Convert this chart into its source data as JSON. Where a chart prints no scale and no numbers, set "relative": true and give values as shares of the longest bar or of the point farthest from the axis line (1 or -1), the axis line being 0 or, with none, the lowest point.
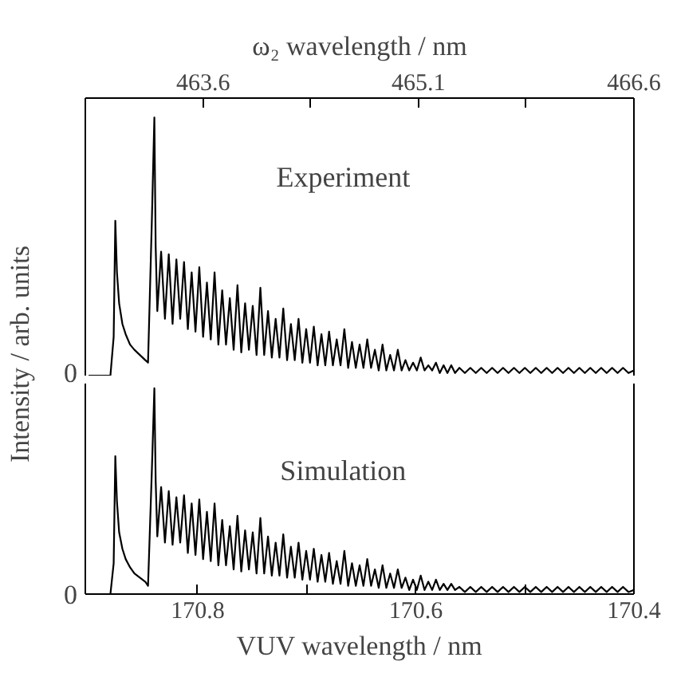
{
  "chart_data": [
    {
      "type": "line",
      "relative": true,
      "ylabel": "Intensity / arb. units",
      "x2label": "ω₂ wavelength / nm",
      "xlim": [
        170.903,
        170.4
      ],
      "x2lim": [
        462.78,
        466.6
      ],
      "x2ticks": [
        463.6,
        {
          "value": 464.35,
          "label": null
        },
        465.1,
        {
          "value": 465.85,
          "label": null
        },
        466.6
      ],
      "annotations": [
        "0"
      ],
      "x": [
        170.9,
        170.89,
        170.88,
        170.877,
        170.8755,
        170.874,
        170.872,
        170.869,
        170.866,
        170.862,
        170.858,
        170.853,
        170.848,
        170.8455,
        170.842,
        170.8397,
        170.8385,
        170.837,
        170.8335,
        170.83,
        170.8265,
        170.823,
        170.8195,
        170.816,
        170.8125,
        170.809,
        170.8055,
        170.802,
        170.7985,
        170.795,
        170.7915,
        170.788,
        170.7845,
        170.781,
        170.7775,
        170.774,
        170.7705,
        170.767,
        170.7635,
        170.76,
        170.7565,
        170.753,
        170.7495,
        170.746,
        170.7425,
        170.739,
        170.7355,
        170.732,
        170.7285,
        170.725,
        170.7215,
        170.718,
        170.7145,
        170.711,
        170.7075,
        170.704,
        170.7005,
        170.697,
        170.6935,
        170.69,
        170.6865,
        170.683,
        170.6795,
        170.676,
        170.6725,
        170.669,
        170.6655,
        170.662,
        170.6585,
        170.655,
        170.6515,
        170.648,
        170.6445,
        170.641,
        170.6375,
        170.634,
        170.6305,
        170.627,
        170.6235,
        170.62,
        170.6165,
        170.613,
        170.6095,
        170.606,
        170.6025,
        170.599,
        170.5955,
        170.592,
        170.5885,
        170.585,
        170.5815,
        170.578,
        170.5745,
        170.571,
        170.5675,
        170.564,
        170.56,
        170.555,
        170.55,
        170.545,
        170.54,
        170.535,
        170.53,
        170.525,
        170.52,
        170.515,
        170.51,
        170.505,
        170.5,
        170.495,
        170.49,
        170.485,
        170.48,
        170.475,
        170.47,
        170.465,
        170.46,
        170.455,
        170.45,
        170.445,
        170.44,
        170.435,
        170.43,
        170.425,
        170.42,
        170.415,
        170.41,
        170.405,
        170.4
      ],
      "series": [
        {
          "name": "Experiment",
          "color": "#000000",
          "values": [
            0,
            0,
            0,
            0.15,
            0.6,
            0.4,
            0.28,
            0.2,
            0.16,
            0.12,
            0.1,
            0.08,
            0.06,
            0.05,
            0.6,
            1.0,
            0.5,
            0.25,
            0.48,
            0.22,
            0.47,
            0.2,
            0.45,
            0.22,
            0.44,
            0.18,
            0.4,
            0.17,
            0.42,
            0.15,
            0.36,
            0.14,
            0.4,
            0.12,
            0.33,
            0.12,
            0.3,
            0.1,
            0.35,
            0.09,
            0.28,
            0.1,
            0.27,
            0.08,
            0.34,
            0.08,
            0.25,
            0.07,
            0.22,
            0.07,
            0.26,
            0.06,
            0.2,
            0.06,
            0.22,
            0.05,
            0.18,
            0.05,
            0.19,
            0.04,
            0.16,
            0.04,
            0.17,
            0.04,
            0.14,
            0.04,
            0.18,
            0.03,
            0.13,
            0.03,
            0.12,
            0.03,
            0.14,
            0.03,
            0.1,
            0.02,
            0.12,
            0.02,
            0.08,
            0.02,
            0.1,
            0.02,
            0.06,
            0.02,
            0.05,
            0.02,
            0.07,
            0.02,
            0.04,
            0.02,
            0.05,
            0.01,
            0.04,
            0.01,
            0.04,
            0.01,
            0.03,
            0.01,
            0.03,
            0.01,
            0.03,
            0.01,
            0.03,
            0.01,
            0.03,
            0.01,
            0.03,
            0.01,
            0.03,
            0.01,
            0.03,
            0.01,
            0.03,
            0.01,
            0.03,
            0.01,
            0.03,
            0.01,
            0.03,
            0.01,
            0.03,
            0.01,
            0.03,
            0.01,
            0.03,
            0.01,
            0.03,
            0.01,
            0.02
          ]
        }
      ]
    },
    {
      "type": "line",
      "relative": true,
      "xlabel": "VUV wavelength / nm",
      "xlim": [
        170.903,
        170.4
      ],
      "xticks": [
        170.8,
        {
          "value": 170.7,
          "label": null
        },
        170.6,
        {
          "value": 170.5,
          "label": null
        },
        170.4
      ],
      "annotations": [
        "0"
      ],
      "x": [
        170.9,
        170.89,
        170.88,
        170.877,
        170.8755,
        170.874,
        170.872,
        170.869,
        170.866,
        170.862,
        170.858,
        170.853,
        170.848,
        170.8455,
        170.842,
        170.8397,
        170.8385,
        170.837,
        170.8335,
        170.83,
        170.8265,
        170.823,
        170.8195,
        170.816,
        170.8125,
        170.809,
        170.8055,
        170.802,
        170.7985,
        170.795,
        170.7915,
        170.788,
        170.7845,
        170.781,
        170.7775,
        170.774,
        170.7705,
        170.767,
        170.7635,
        170.76,
        170.7565,
        170.753,
        170.7495,
        170.746,
        170.7425,
        170.739,
        170.7355,
        170.732,
        170.7285,
        170.725,
        170.7215,
        170.718,
        170.7145,
        170.711,
        170.7075,
        170.704,
        170.7005,
        170.697,
        170.6935,
        170.69,
        170.6865,
        170.683,
        170.6795,
        170.676,
        170.6725,
        170.669,
        170.6655,
        170.662,
        170.6585,
        170.655,
        170.6515,
        170.648,
        170.6445,
        170.641,
        170.6375,
        170.634,
        170.6305,
        170.627,
        170.6235,
        170.62,
        170.6165,
        170.613,
        170.6095,
        170.606,
        170.6025,
        170.599,
        170.5955,
        170.592,
        170.5885,
        170.585,
        170.5815,
        170.578,
        170.5745,
        170.571,
        170.5675,
        170.564,
        170.56,
        170.555,
        170.55,
        170.545,
        170.54,
        170.535,
        170.53,
        170.525,
        170.52,
        170.515,
        170.51,
        170.505,
        170.5,
        170.495,
        170.49,
        170.485,
        170.48,
        170.475,
        170.47,
        170.465,
        170.46,
        170.455,
        170.45,
        170.445,
        170.44,
        170.435,
        170.43,
        170.425,
        170.42,
        170.415,
        170.41,
        170.405,
        170.4
      ],
      "series": [
        {
          "name": "Simulation",
          "color": "#000000",
          "values": [
            0,
            0,
            0,
            0.15,
            0.67,
            0.45,
            0.3,
            0.22,
            0.17,
            0.13,
            0.1,
            0.08,
            0.06,
            0.04,
            0.6,
            1.0,
            0.55,
            0.28,
            0.52,
            0.25,
            0.5,
            0.24,
            0.47,
            0.25,
            0.48,
            0.2,
            0.44,
            0.19,
            0.46,
            0.17,
            0.4,
            0.16,
            0.44,
            0.14,
            0.36,
            0.14,
            0.33,
            0.12,
            0.38,
            0.11,
            0.31,
            0.12,
            0.3,
            0.1,
            0.37,
            0.1,
            0.28,
            0.09,
            0.25,
            0.09,
            0.29,
            0.08,
            0.23,
            0.08,
            0.25,
            0.07,
            0.21,
            0.07,
            0.22,
            0.06,
            0.19,
            0.06,
            0.2,
            0.05,
            0.16,
            0.05,
            0.21,
            0.04,
            0.15,
            0.04,
            0.14,
            0.04,
            0.17,
            0.04,
            0.12,
            0.03,
            0.14,
            0.03,
            0.1,
            0.03,
            0.12,
            0.03,
            0.08,
            0.02,
            0.07,
            0.02,
            0.09,
            0.02,
            0.06,
            0.02,
            0.07,
            0.02,
            0.05,
            0.02,
            0.05,
            0.02,
            0.035,
            0.01,
            0.035,
            0.01,
            0.035,
            0.01,
            0.035,
            0.01,
            0.035,
            0.01,
            0.035,
            0.01,
            0.035,
            0.01,
            0.035,
            0.01,
            0.035,
            0.01,
            0.035,
            0.01,
            0.035,
            0.01,
            0.035,
            0.01,
            0.035,
            0.01,
            0.035,
            0.01,
            0.035,
            0.01,
            0.035,
            0.01,
            0.02
          ]
        }
      ]
    }
  ]
}
